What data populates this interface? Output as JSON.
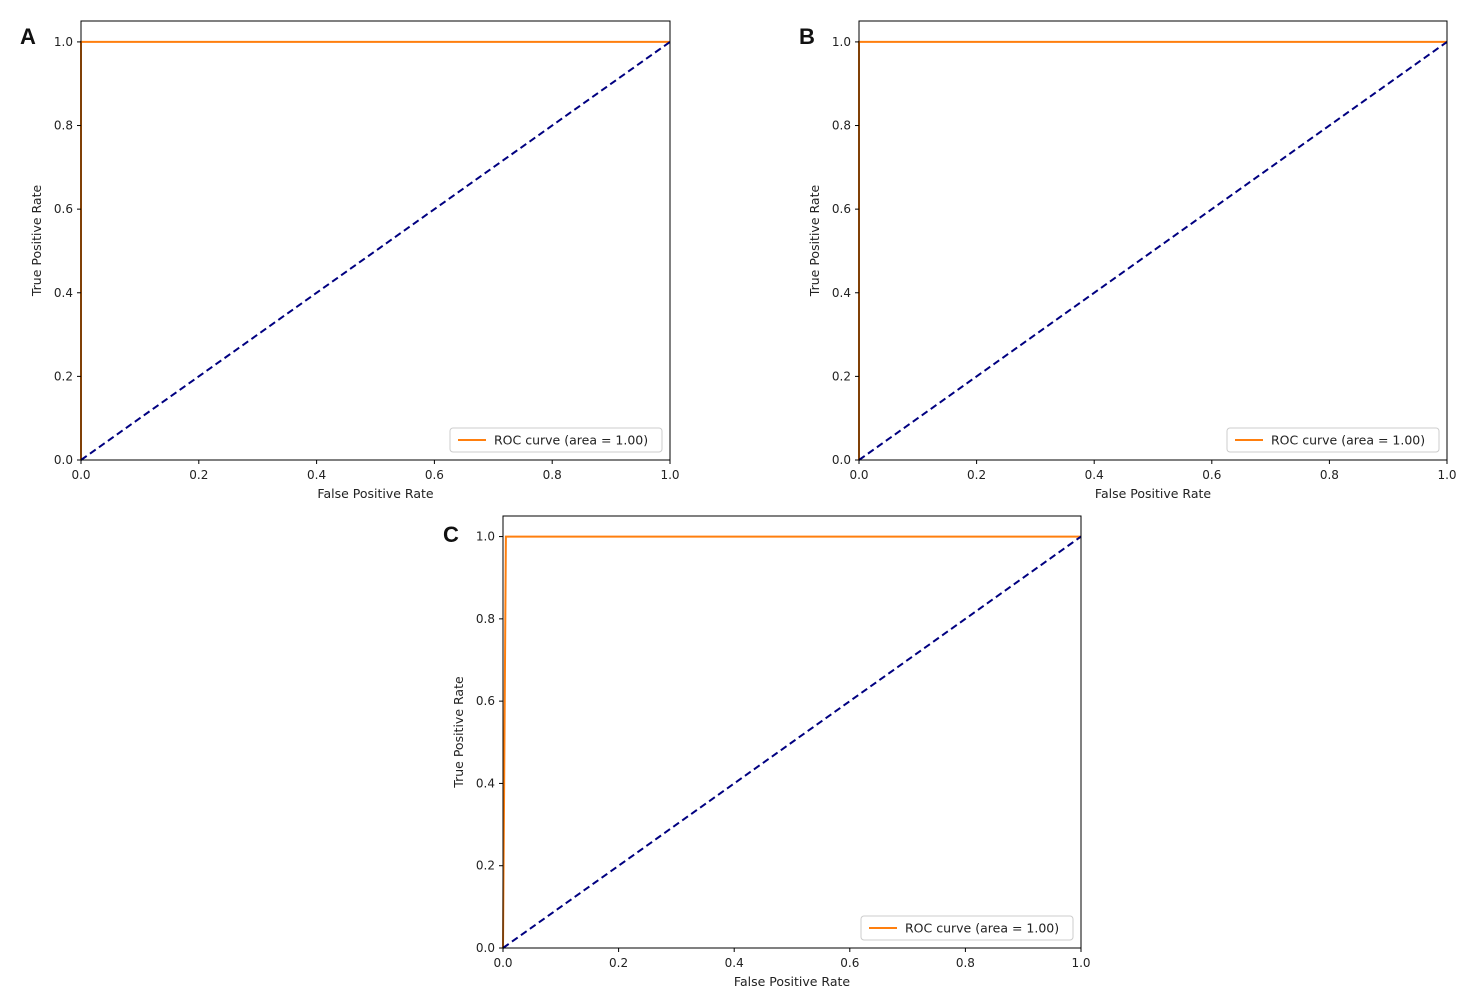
{
  "chart_data": [
    {
      "panel_label": "A",
      "type": "line",
      "xlabel": "False Positive Rate",
      "ylabel": "True Positive Rate",
      "xlim": [
        0,
        1
      ],
      "ylim": [
        0,
        1.05
      ],
      "xticks": [
        "0.0",
        "0.2",
        "0.4",
        "0.6",
        "0.8",
        "1.0"
      ],
      "yticks": [
        "0.0",
        "0.2",
        "0.4",
        "0.6",
        "0.8",
        "1.0"
      ],
      "grid": false,
      "legend_position": "lower right",
      "series": [
        {
          "name": "ROC curve (area = 1.00)",
          "color": "#ff7f0e",
          "style": "solid",
          "x": [
            0,
            0,
            1
          ],
          "y": [
            0,
            1,
            1
          ]
        },
        {
          "color": "#000080",
          "style": "dashed",
          "x": [
            0,
            1
          ],
          "y": [
            0,
            1
          ]
        }
      ]
    },
    {
      "panel_label": "B",
      "type": "line",
      "xlabel": "False Positive Rate",
      "ylabel": "True Positive Rate",
      "xlim": [
        0,
        1
      ],
      "ylim": [
        0,
        1.05
      ],
      "xticks": [
        "0.0",
        "0.2",
        "0.4",
        "0.6",
        "0.8",
        "1.0"
      ],
      "yticks": [
        "0.0",
        "0.2",
        "0.4",
        "0.6",
        "0.8",
        "1.0"
      ],
      "grid": false,
      "legend_position": "lower right",
      "series": [
        {
          "name": "ROC curve (area = 1.00)",
          "color": "#ff7f0e",
          "style": "solid",
          "x": [
            0,
            0,
            1
          ],
          "y": [
            0,
            1,
            1
          ]
        },
        {
          "color": "#000080",
          "style": "dashed",
          "x": [
            0,
            1
          ],
          "y": [
            0,
            1
          ]
        }
      ]
    },
    {
      "panel_label": "C",
      "type": "line",
      "xlabel": "False Positive Rate",
      "ylabel": "True Positive Rate",
      "xlim": [
        0,
        1
      ],
      "ylim": [
        0,
        1.05
      ],
      "xticks": [
        "0.0",
        "0.2",
        "0.4",
        "0.6",
        "0.8",
        "1.0"
      ],
      "yticks": [
        "0.0",
        "0.2",
        "0.4",
        "0.6",
        "0.8",
        "1.0"
      ],
      "grid": false,
      "legend_position": "lower right",
      "series": [
        {
          "name": "ROC curve (area = 1.00)",
          "color": "#ff7f0e",
          "style": "solid",
          "x": [
            0,
            0.005,
            1
          ],
          "y": [
            0,
            1,
            1
          ]
        },
        {
          "color": "#000080",
          "style": "dashed",
          "x": [
            0,
            1
          ],
          "y": [
            0,
            1
          ]
        }
      ]
    }
  ]
}
